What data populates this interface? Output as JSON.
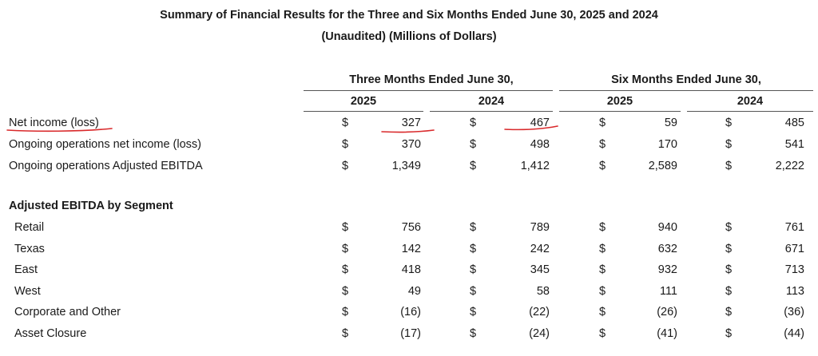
{
  "title": "Summary of Financial Results for the Three and Six Months Ended June 30, 2025 and 2024",
  "subtitle": "(Unaudited) (Millions of Dollars)",
  "periods": [
    "Three Months Ended June 30,",
    "Six Months Ended June 30,"
  ],
  "years": [
    "2025",
    "2024",
    "2025",
    "2024"
  ],
  "currency_symbol": "$",
  "summary_rows": [
    {
      "label": "Net income (loss)",
      "values": [
        "327",
        "467",
        "59",
        "485"
      ]
    },
    {
      "label": "Ongoing operations net income (loss)",
      "values": [
        "370",
        "498",
        "170",
        "541"
      ]
    },
    {
      "label": "Ongoing operations Adjusted EBITDA",
      "values": [
        "1,349",
        "1,412",
        "2,589",
        "2,222"
      ]
    }
  ],
  "segment_section_title": "Adjusted EBITDA by Segment",
  "segment_rows": [
    {
      "label": "Retail",
      "values": [
        "756",
        "789",
        "940",
        "761"
      ]
    },
    {
      "label": "Texas",
      "values": [
        "142",
        "242",
        "632",
        "671"
      ]
    },
    {
      "label": "East",
      "values": [
        "418",
        "345",
        "932",
        "713"
      ]
    },
    {
      "label": "West",
      "values": [
        "49",
        "58",
        "111",
        "113"
      ]
    },
    {
      "label": "Corporate and Other",
      "values": [
        "(16)",
        "(22)",
        "(26)",
        "(36)"
      ]
    },
    {
      "label": "Asset Closure",
      "values": [
        "(17)",
        "(24)",
        "(41)",
        "(44)"
      ]
    }
  ],
  "annotation_color": "#d9292b"
}
